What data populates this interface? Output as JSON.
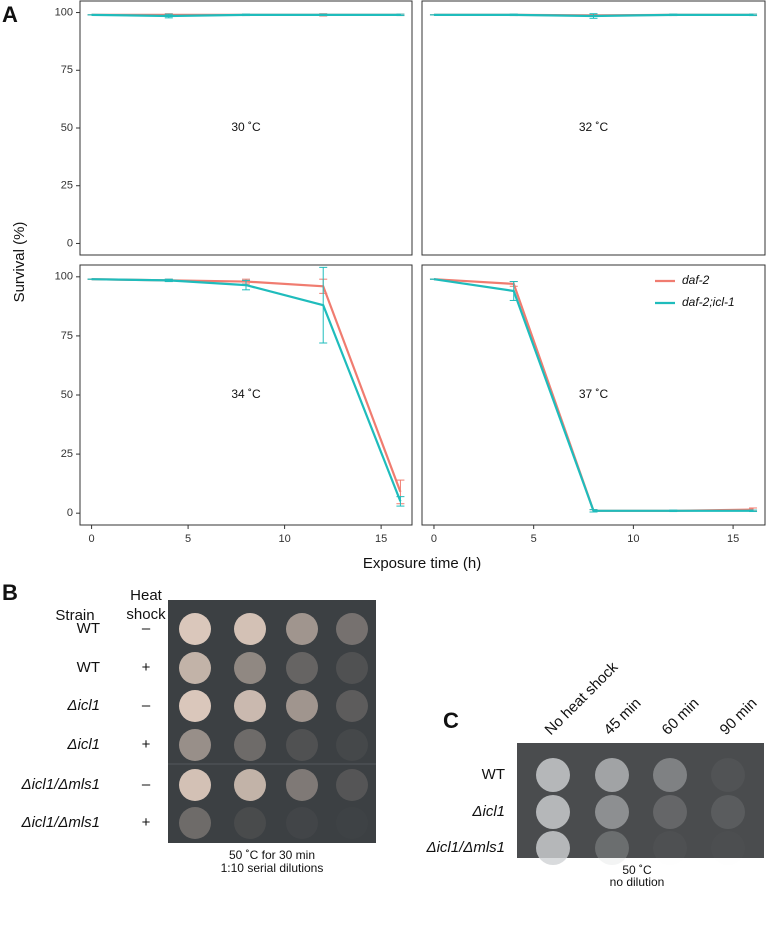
{
  "panel_a": {
    "label": "A",
    "ylabel": "Survival (%)",
    "xlabel": "Exposure time (h)"
  },
  "chart_data": [
    {
      "type": "line",
      "annotation": "30 ˚C",
      "x": [
        0,
        4,
        8,
        12,
        16
      ],
      "xlim": [
        -0.6,
        16.6
      ],
      "ylim": [
        -5,
        105
      ],
      "yticks": [
        0,
        25,
        50,
        75,
        100
      ],
      "series": [
        {
          "color": "#f07c70",
          "values": [
            99,
            99,
            99,
            99,
            99
          ],
          "errors": [
            0,
            0.5,
            0.3,
            0.5,
            0.3
          ]
        },
        {
          "color": "#1fbcbc",
          "values": [
            99,
            98.5,
            99,
            99,
            99
          ],
          "errors": [
            0,
            0.8,
            0.3,
            0.3,
            0.3
          ]
        }
      ]
    },
    {
      "type": "line",
      "annotation": "32 ˚C",
      "x": [
        0,
        4,
        8,
        12,
        16
      ],
      "xlim": [
        -0.6,
        16.6
      ],
      "ylim": [
        -5,
        105
      ],
      "series": [
        {
          "color": "#f07c70",
          "values": [
            99,
            99,
            98.8,
            99,
            99
          ],
          "errors": [
            0,
            0.3,
            0.5,
            0.3,
            0.3
          ]
        },
        {
          "color": "#1fbcbc",
          "values": [
            99,
            99,
            98.5,
            99,
            99
          ],
          "errors": [
            0,
            0.3,
            1,
            0.3,
            0.3
          ]
        }
      ]
    },
    {
      "type": "line",
      "annotation": "34 ˚C",
      "x": [
        0,
        4,
        8,
        12,
        16
      ],
      "xlim": [
        -0.6,
        16.6
      ],
      "ylim": [
        -5,
        105
      ],
      "yticks": [
        0,
        25,
        50,
        75,
        100
      ],
      "xticks": [
        0,
        5,
        10,
        15
      ],
      "series": [
        {
          "color": "#f07c70",
          "values": [
            99,
            98.5,
            98,
            96,
            9
          ],
          "errors": [
            0,
            0.5,
            1,
            3,
            5
          ]
        },
        {
          "color": "#1fbcbc",
          "values": [
            99,
            98.5,
            96.5,
            88,
            5
          ],
          "errors": [
            0,
            0.5,
            2,
            16,
            2
          ]
        }
      ]
    },
    {
      "type": "line",
      "annotation": "37 ˚C",
      "x": [
        0,
        4,
        8,
        12,
        16
      ],
      "xlim": [
        -0.6,
        16.6
      ],
      "ylim": [
        -5,
        105
      ],
      "xticks": [
        0,
        5,
        10,
        15
      ],
      "legend": "top-right",
      "series": [
        {
          "name": "daf-2",
          "color": "#f07c70",
          "values": [
            99,
            97,
            1,
            1,
            1.5
          ],
          "errors": [
            0,
            1,
            0.5,
            0.3,
            0.7
          ]
        },
        {
          "name": "daf-2;icl-1",
          "color": "#1fbcbc",
          "values": [
            99,
            94,
            1,
            1,
            1
          ],
          "errors": [
            0,
            4,
            0.5,
            0.3,
            0.3
          ]
        }
      ]
    }
  ],
  "panel_b": {
    "label": "B",
    "col_strain": "Strain",
    "col_heat": [
      "Heat",
      "shock"
    ],
    "rows": [
      [
        "WT",
        "–"
      ],
      [
        "WT",
        "+"
      ],
      [
        "Δicl1",
        "–"
      ],
      [
        "Δicl1",
        "+"
      ],
      [
        "Δicl1/Δmls1",
        "–"
      ],
      [
        "Δicl1/Δmls1",
        "+"
      ]
    ],
    "caption": [
      "50 ˚C for 30 min",
      "1:10 serial dilutions"
    ]
  },
  "panel_c": {
    "label": "C",
    "columns": [
      "No heat shock",
      "45 min",
      "60 min",
      "90 min"
    ],
    "rows": [
      "WT",
      "Δicl1",
      "Δicl1/Δmls1"
    ],
    "caption": [
      "50 ˚C",
      "no dilution"
    ]
  }
}
